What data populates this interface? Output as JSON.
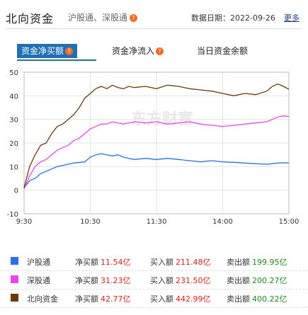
{
  "header": {
    "title": "北向资金",
    "subtitle": "沪股通、深股通",
    "date_label": "数据日期：",
    "date": "2022-09-26",
    "more": "更多"
  },
  "tabs": [
    {
      "label": "资金净买额",
      "active": true,
      "help": "?"
    },
    {
      "label": "资金净流入",
      "active": false,
      "help": "?"
    },
    {
      "label": "当日资金余额",
      "active": false
    }
  ],
  "chart_data": {
    "type": "line",
    "ylim": [
      -10,
      50
    ],
    "yticks": [
      "50",
      "40",
      "30",
      "20",
      "10",
      "0",
      "-10"
    ],
    "xticks": [
      "9:30",
      "10:30",
      "11:30",
      "14:00",
      "15:00"
    ],
    "watermark": "东方财富",
    "series": [
      {
        "name": "沪股通",
        "color": "#2a6fe8",
        "points": [
          [
            0,
            1
          ],
          [
            5,
            4
          ],
          [
            10,
            5
          ],
          [
            15,
            7
          ],
          [
            20,
            8
          ],
          [
            25,
            9
          ],
          [
            30,
            10
          ],
          [
            35,
            10.5
          ],
          [
            40,
            11
          ],
          [
            45,
            11.5
          ],
          [
            55,
            12
          ],
          [
            60,
            14
          ],
          [
            65,
            15
          ],
          [
            70,
            15.5
          ],
          [
            75,
            15
          ],
          [
            80,
            14.5
          ],
          [
            85,
            15
          ],
          [
            90,
            14
          ],
          [
            95,
            13.5
          ],
          [
            100,
            13
          ],
          [
            110,
            13.5
          ],
          [
            120,
            13
          ],
          [
            130,
            13.5
          ],
          [
            140,
            13
          ],
          [
            150,
            12.5
          ],
          [
            160,
            12
          ],
          [
            170,
            12.5
          ],
          [
            180,
            12
          ],
          [
            190,
            11.8
          ],
          [
            200,
            11.5
          ],
          [
            210,
            11.2
          ],
          [
            220,
            11
          ],
          [
            230,
            11.5
          ],
          [
            235,
            11.6
          ],
          [
            240,
            11.54
          ]
        ]
      },
      {
        "name": "深股通",
        "color": "#ee44ee",
        "points": [
          [
            0,
            0.5
          ],
          [
            5,
            6
          ],
          [
            10,
            10
          ],
          [
            15,
            12
          ],
          [
            20,
            13
          ],
          [
            25,
            15
          ],
          [
            30,
            17
          ],
          [
            35,
            18
          ],
          [
            40,
            19
          ],
          [
            45,
            21
          ],
          [
            50,
            22
          ],
          [
            55,
            24
          ],
          [
            60,
            26
          ],
          [
            65,
            27
          ],
          [
            70,
            28
          ],
          [
            75,
            28
          ],
          [
            80,
            29
          ],
          [
            85,
            28.5
          ],
          [
            90,
            28
          ],
          [
            100,
            29
          ],
          [
            110,
            28.5
          ],
          [
            120,
            29
          ],
          [
            130,
            28
          ],
          [
            140,
            28.5
          ],
          [
            150,
            29
          ],
          [
            160,
            28
          ],
          [
            170,
            27.5
          ],
          [
            180,
            27
          ],
          [
            190,
            27.5
          ],
          [
            200,
            28
          ],
          [
            210,
            28.5
          ],
          [
            220,
            29
          ],
          [
            225,
            30
          ],
          [
            230,
            31
          ],
          [
            235,
            31.5
          ],
          [
            240,
            31.23
          ]
        ]
      },
      {
        "name": "北向资金",
        "color": "#6b3a0f",
        "points": [
          [
            0,
            1
          ],
          [
            5,
            10
          ],
          [
            10,
            15
          ],
          [
            15,
            19
          ],
          [
            20,
            20
          ],
          [
            25,
            24
          ],
          [
            30,
            27
          ],
          [
            35,
            28
          ],
          [
            40,
            30
          ],
          [
            45,
            32
          ],
          [
            50,
            35
          ],
          [
            55,
            39
          ],
          [
            60,
            41
          ],
          [
            65,
            43
          ],
          [
            70,
            44
          ],
          [
            75,
            43
          ],
          [
            80,
            44.5
          ],
          [
            85,
            43.5
          ],
          [
            90,
            43
          ],
          [
            95,
            44
          ],
          [
            100,
            43.5
          ],
          [
            110,
            44
          ],
          [
            120,
            43
          ],
          [
            130,
            44.5
          ],
          [
            140,
            44
          ],
          [
            150,
            43
          ],
          [
            160,
            42.5
          ],
          [
            170,
            42
          ],
          [
            180,
            41
          ],
          [
            190,
            40
          ],
          [
            200,
            41
          ],
          [
            210,
            40.5
          ],
          [
            220,
            42
          ],
          [
            225,
            44
          ],
          [
            230,
            45
          ],
          [
            235,
            44
          ],
          [
            240,
            42.77
          ]
        ]
      }
    ]
  },
  "legend": [
    {
      "name": "沪股通",
      "color": "#2a6fe8",
      "net_label": "净买额",
      "net": "11.54亿",
      "buy_label": "买入额",
      "buy": "211.48亿",
      "sell_label": "卖出额",
      "sell": "199.95亿"
    },
    {
      "name": "深股通",
      "color": "#ee44ee",
      "net_label": "净买额",
      "net": "31.23亿",
      "buy_label": "买入额",
      "buy": "231.50亿",
      "sell_label": "卖出额",
      "sell": "200.27亿"
    },
    {
      "name": "北向资金",
      "color": "#6b3a0f",
      "net_label": "净买额",
      "net": "42.77亿",
      "buy_label": "买入额",
      "buy": "442.99亿",
      "sell_label": "卖出额",
      "sell": "400.22亿"
    }
  ]
}
